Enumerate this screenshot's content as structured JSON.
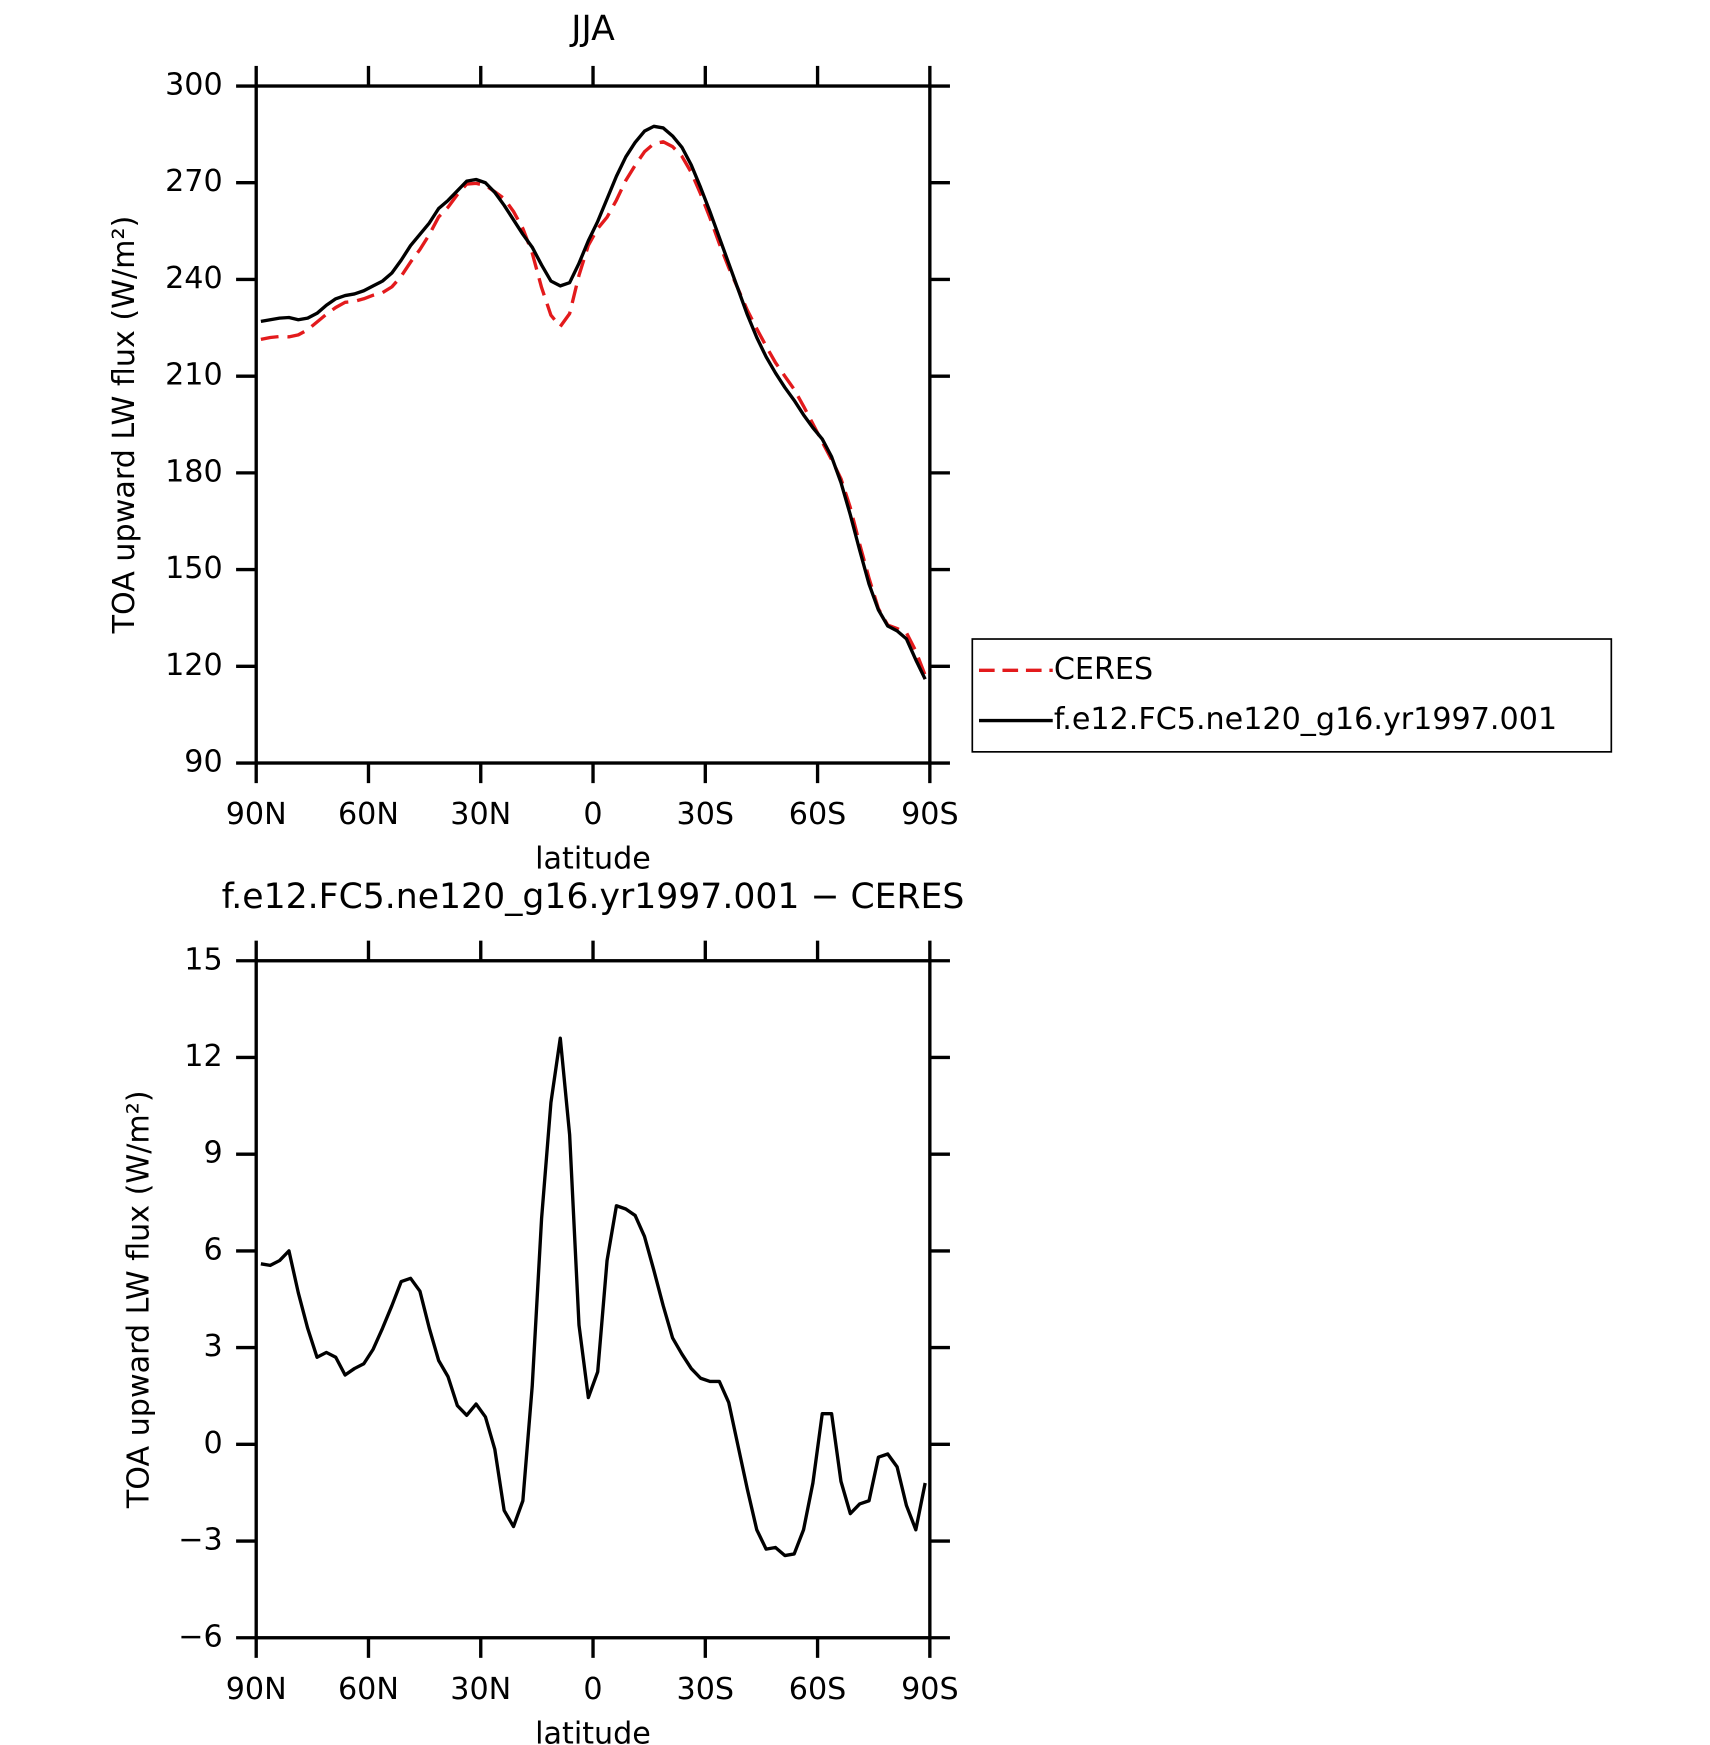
{
  "chart_data": [
    {
      "type": "line",
      "title": "JJA",
      "x_label": "latitude",
      "y_label": "TOA upward LW flux (W/m²)",
      "x": [
        88.75,
        86.25,
        83.75,
        81.25,
        78.75,
        76.25,
        73.75,
        71.25,
        68.75,
        66.25,
        63.75,
        61.25,
        58.75,
        56.25,
        53.75,
        51.25,
        48.75,
        46.25,
        43.75,
        41.25,
        38.75,
        36.25,
        33.75,
        31.25,
        28.75,
        26.25,
        23.75,
        21.25,
        18.75,
        16.25,
        13.75,
        11.25,
        8.75,
        6.25,
        3.75,
        1.25,
        -1.25,
        -3.75,
        -6.25,
        -8.75,
        -11.25,
        -13.75,
        -16.25,
        -18.75,
        -21.25,
        -23.75,
        -26.25,
        -28.75,
        -31.25,
        -33.75,
        -36.25,
        -38.75,
        -41.25,
        -43.75,
        -46.25,
        -48.75,
        -51.25,
        -53.75,
        -56.25,
        -58.75,
        -61.25,
        -63.75,
        -66.25,
        -68.75,
        -71.25,
        -73.75,
        -76.25,
        -78.75,
        -81.25,
        -83.75,
        -86.25,
        -88.75
      ],
      "xlim": [
        90,
        -90
      ],
      "xticks": [
        {
          "value": 90,
          "label": "90N"
        },
        {
          "value": 60,
          "label": "60N"
        },
        {
          "value": 30,
          "label": "30N"
        },
        0,
        {
          "value": -30,
          "label": "30S"
        },
        {
          "value": -60,
          "label": "60S"
        },
        {
          "value": -90,
          "label": "90S"
        }
      ],
      "ylim": [
        90,
        300
      ],
      "yticks": [
        90,
        120,
        150,
        180,
        210,
        240,
        270,
        300
      ],
      "legend": "right",
      "series": [
        {
          "name": "CERES",
          "color": "#e31a1c",
          "line_style": "dashed",
          "values": [
            221.4,
            222,
            222.3,
            222.2,
            222.8,
            224.4,
            226.8,
            229.2,
            231.3,
            232.9,
            233.2,
            234,
            235.1,
            235.9,
            237.7,
            241,
            245.4,
            249.3,
            253.9,
            259.4,
            262.4,
            266.3,
            269.6,
            269.8,
            269.2,
            267.2,
            265.1,
            261.1,
            255.8,
            248.2,
            237.5,
            228.9,
            225.4,
            229.4,
            241.3,
            250.6,
            255.8,
            259.3,
            264.6,
            270.7,
            275.4,
            279.6,
            282.1,
            282.7,
            281.2,
            278.2,
            273.2,
            266.5,
            259.1,
            251.1,
            243.7,
            237.1,
            230.4,
            224.7,
            219.3,
            214.2,
            210,
            205.9,
            200.7,
            195.2,
            189.6,
            184.1,
            178.2,
            169.2,
            157.9,
            147.3,
            137.9,
            132.8,
            131.7,
            130.4,
            124.7,
            117.2
          ]
        },
        {
          "name": "f.e12.FC5.ne120_g16.yr1997.001",
          "color": "#000000",
          "line_style": "solid",
          "values": [
            227,
            227.5,
            228,
            228.2,
            227.5,
            228,
            229.5,
            232,
            234,
            235,
            235.5,
            236.5,
            238,
            239.5,
            242,
            246,
            250.5,
            254,
            257.5,
            262,
            264.5,
            267.5,
            270.5,
            271,
            270,
            267,
            263,
            258.5,
            254,
            250,
            244.5,
            239.5,
            238,
            239,
            245,
            252,
            258,
            265,
            272,
            278,
            282.5,
            286,
            287.5,
            287,
            284.5,
            281,
            275.5,
            268.5,
            261,
            253,
            245,
            237,
            229,
            222,
            216,
            211,
            206.5,
            202.5,
            198,
            194,
            190.5,
            185,
            177,
            167,
            156,
            145.5,
            137.5,
            132.5,
            131,
            128.5,
            122,
            116
          ]
        }
      ]
    },
    {
      "type": "line",
      "title": "f.e12.FC5.ne120_g16.yr1997.001 − CERES",
      "x_label": "latitude",
      "y_label": "TOA upward LW flux (W/m²)",
      "x": [
        88.75,
        86.25,
        83.75,
        81.25,
        78.75,
        76.25,
        73.75,
        71.25,
        68.75,
        66.25,
        63.75,
        61.25,
        58.75,
        56.25,
        53.75,
        51.25,
        48.75,
        46.25,
        43.75,
        41.25,
        38.75,
        36.25,
        33.75,
        31.25,
        28.75,
        26.25,
        23.75,
        21.25,
        18.75,
        16.25,
        13.75,
        11.25,
        8.75,
        6.25,
        3.75,
        1.25,
        -1.25,
        -3.75,
        -6.25,
        -8.75,
        -11.25,
        -13.75,
        -16.25,
        -18.75,
        -21.25,
        -23.75,
        -26.25,
        -28.75,
        -31.25,
        -33.75,
        -36.25,
        -38.75,
        -41.25,
        -43.75,
        -46.25,
        -48.75,
        -51.25,
        -53.75,
        -56.25,
        -58.75,
        -61.25,
        -63.75,
        -66.25,
        -68.75,
        -71.25,
        -73.75,
        -76.25,
        -78.75,
        -81.25,
        -83.75,
        -86.25,
        -88.75
      ],
      "xlim": [
        90,
        -90
      ],
      "xticks": [
        {
          "value": 90,
          "label": "90N"
        },
        {
          "value": 60,
          "label": "60N"
        },
        {
          "value": 30,
          "label": "30N"
        },
        0,
        {
          "value": -30,
          "label": "30S"
        },
        {
          "value": -60,
          "label": "60S"
        },
        {
          "value": -90,
          "label": "90S"
        }
      ],
      "ylim": [
        -6,
        15
      ],
      "yticks": [
        {
          "value": -6,
          "label": "−6"
        },
        {
          "value": -3,
          "label": "−3"
        },
        0,
        3,
        6,
        9,
        12,
        15
      ],
      "series": [
        {
          "color": "#000000",
          "line_style": "solid",
          "values": [
            5.6,
            5.55,
            5.7,
            6,
            4.7,
            3.6,
            2.7,
            2.85,
            2.7,
            2.15,
            2.35,
            2.5,
            2.95,
            3.6,
            4.3,
            5.05,
            5.15,
            4.75,
            3.6,
            2.6,
            2.1,
            1.2,
            0.9,
            1.25,
            0.85,
            -0.15,
            -2.05,
            -2.55,
            -1.75,
            1.8,
            7,
            10.6,
            12.6,
            9.6,
            3.7,
            1.45,
            2.25,
            5.7,
            7.4,
            7.3,
            7.1,
            6.45,
            5.4,
            4.3,
            3.3,
            2.8,
            2.35,
            2.05,
            1.95,
            1.95,
            1.3,
            -0.05,
            -1.4,
            -2.65,
            -3.25,
            -3.2,
            -3.45,
            -3.4,
            -2.65,
            -1.2,
            0.95,
            0.95,
            -1.15,
            -2.15,
            -1.85,
            -1.75,
            -0.4,
            -0.3,
            -0.7,
            -1.9,
            -2.65,
            -1.2
          ]
        }
      ]
    }
  ]
}
